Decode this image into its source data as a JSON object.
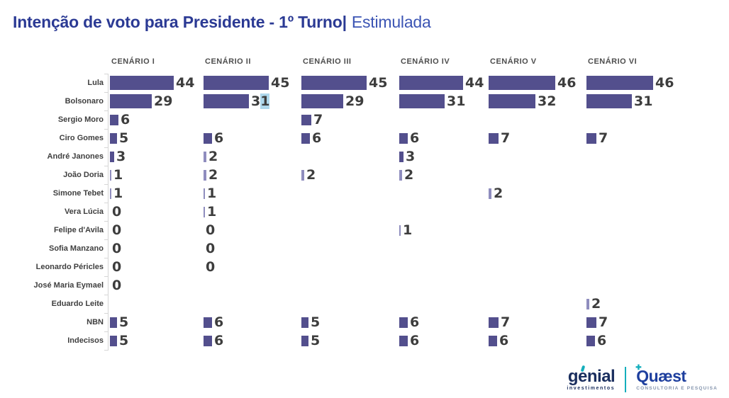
{
  "title": {
    "main": "Intenção de voto para Presidente - 1º Turno|",
    "sub": "Estimulada"
  },
  "colors": {
    "bar": "#534f8d",
    "bar_thin": "#8f8dbe",
    "value_text": "#3d3d3d",
    "title_blue": "#2b3a94",
    "highlight_blue": "#aed7eb",
    "genial_navy": "#1a2e5e",
    "quaest_blue": "#1e3f9e",
    "teal_accent": "#14aebc"
  },
  "chart_data": {
    "type": "bar",
    "orientation": "horizontal",
    "title": "Intenção de voto para Presidente - 1º Turno | Estimulada",
    "xlabel": "",
    "ylabel": "",
    "xlim": [
      0,
      50
    ],
    "grid": false,
    "legend": "none",
    "categories": [
      "Lula",
      "Bolsonaro",
      "Sergio Moro",
      "Ciro Gomes",
      "André Janones",
      "João Doria",
      "Simone Tebet",
      "Vera Lúcia",
      "Felipe d'Avila",
      "Sofia Manzano",
      "Leonardo Péricles",
      "José Maria Eymael",
      "Eduardo Leite",
      "NBN",
      "Indecisos"
    ],
    "series": [
      {
        "name": "CENÁRIO I",
        "values": [
          44,
          29,
          6,
          5,
          3,
          1,
          1,
          0,
          0,
          0,
          0,
          0,
          null,
          5,
          5
        ]
      },
      {
        "name": "CENÁRIO II",
        "values": [
          45,
          31,
          null,
          6,
          2,
          2,
          1,
          1,
          0,
          0,
          0,
          null,
          null,
          6,
          6
        ]
      },
      {
        "name": "CENÁRIO III",
        "values": [
          45,
          29,
          7,
          6,
          null,
          2,
          null,
          null,
          null,
          null,
          null,
          null,
          null,
          5,
          5
        ]
      },
      {
        "name": "CENÁRIO IV",
        "values": [
          44,
          31,
          null,
          6,
          3,
          2,
          null,
          null,
          1,
          null,
          null,
          null,
          null,
          6,
          6
        ]
      },
      {
        "name": "CENÁRIO V",
        "values": [
          46,
          32,
          null,
          7,
          null,
          null,
          2,
          null,
          null,
          null,
          null,
          null,
          null,
          7,
          6
        ]
      },
      {
        "name": "CENÁRIO VI",
        "values": [
          46,
          31,
          null,
          7,
          null,
          null,
          null,
          null,
          null,
          null,
          null,
          null,
          2,
          7,
          6
        ]
      }
    ],
    "highlight": {
      "series_index": 1,
      "row_index": 1,
      "note": "last digit of Bolsonaro's 31 in Cenário II has a light-blue selection highlight"
    }
  },
  "footer": {
    "genial": {
      "name": "genial",
      "tagline": "investimentos"
    },
    "quaest": {
      "name": "Quæst",
      "tagline": "CONSULTORIA E PESQUISA",
      "plus_glyph": "✚"
    }
  }
}
